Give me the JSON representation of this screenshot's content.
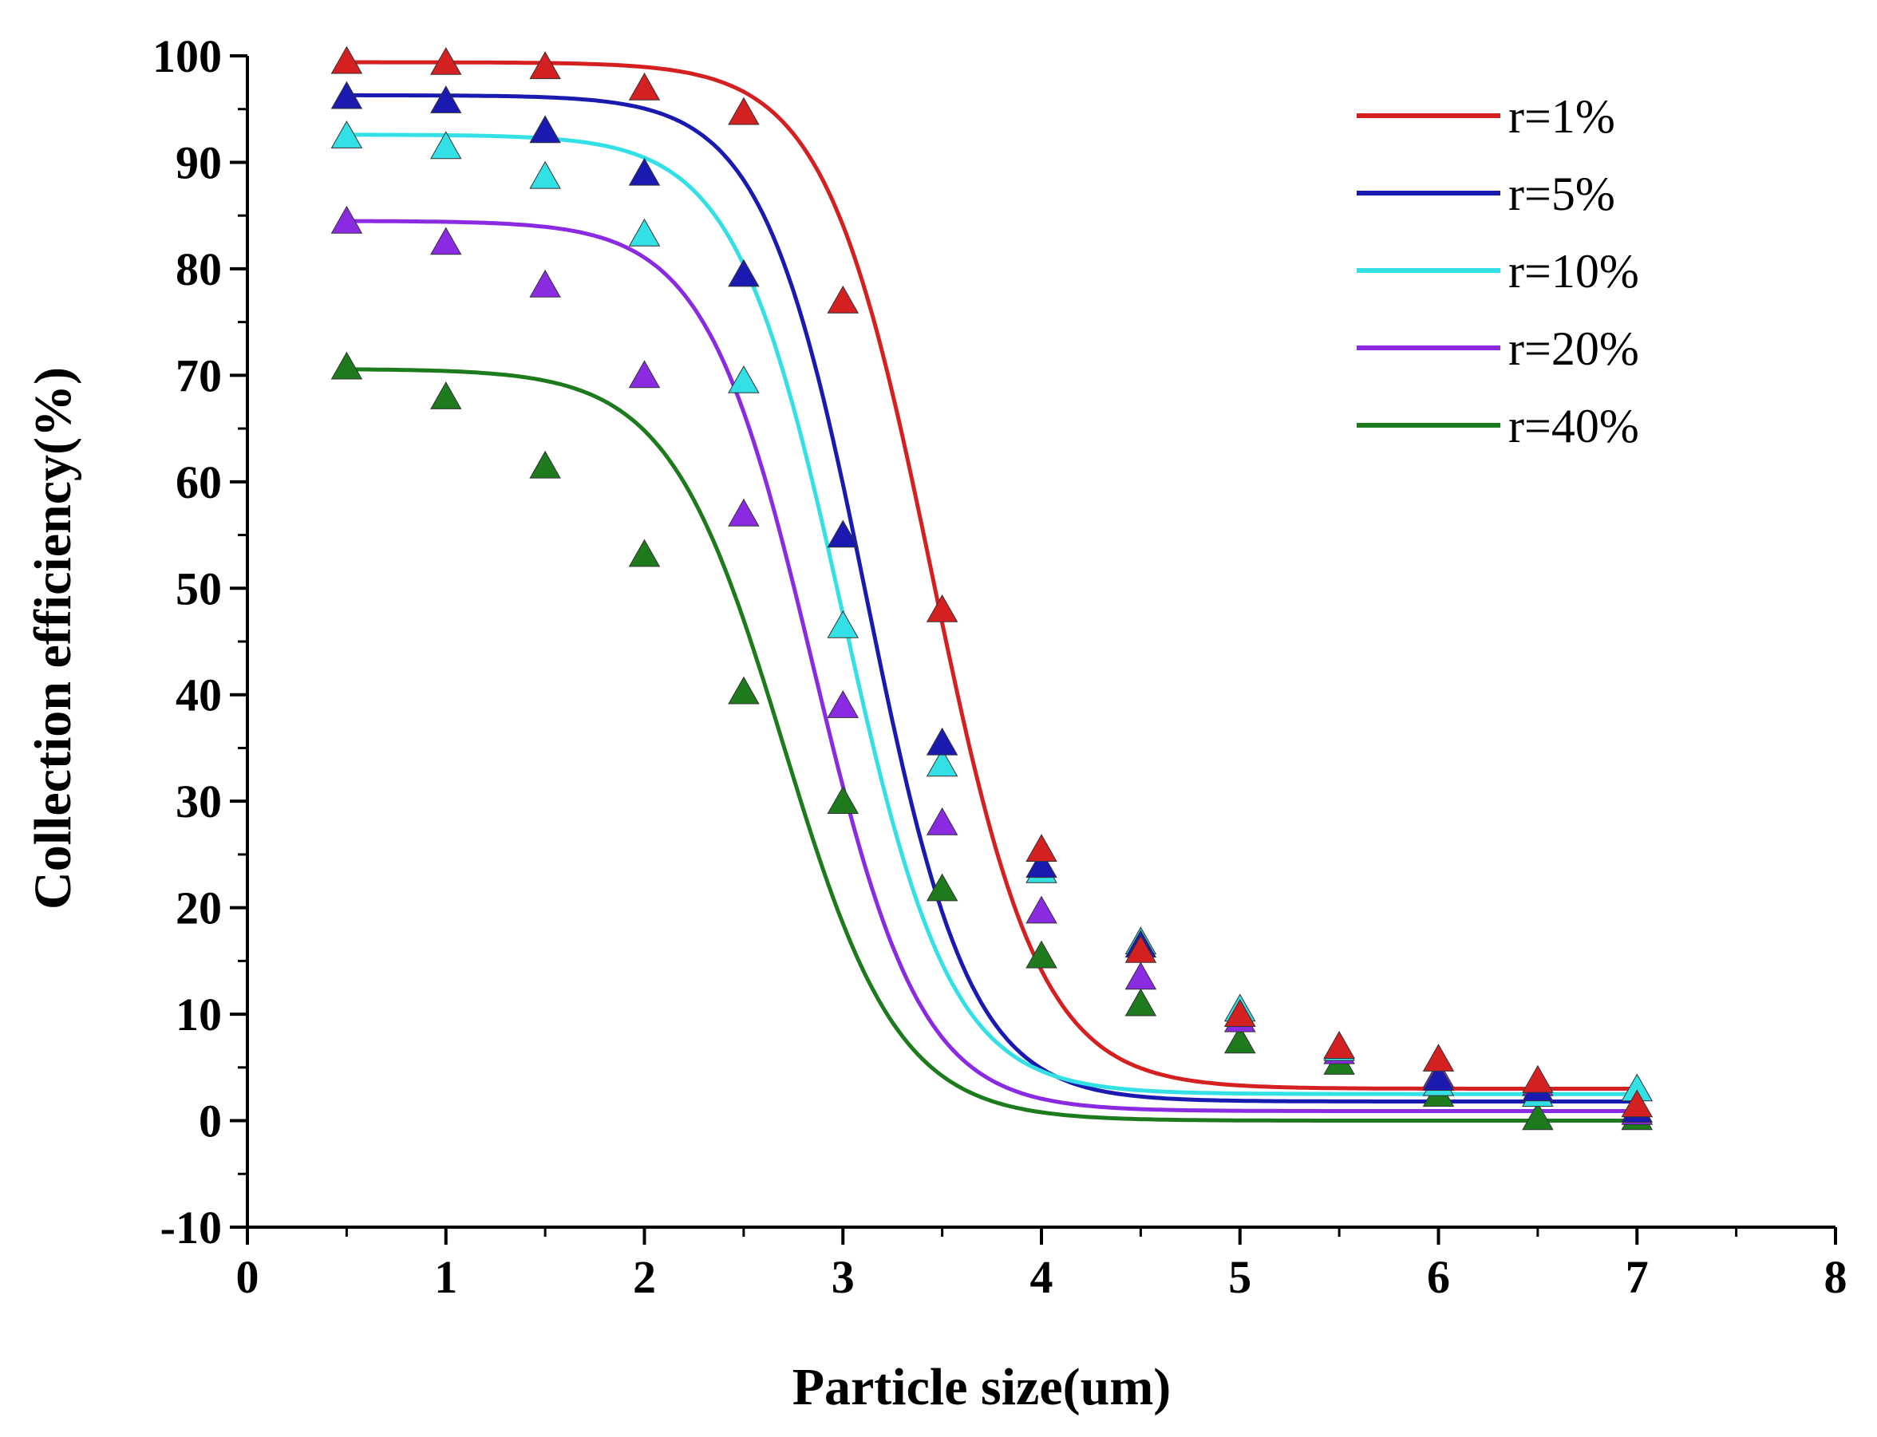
{
  "chart_data": {
    "type": "scatter",
    "title": "",
    "xlabel": "Particle size(um)",
    "ylabel": "Collection efficiency(%)",
    "xlim": [
      0,
      8
    ],
    "ylim": [
      -10,
      100
    ],
    "xticks": [
      0,
      1,
      2,
      3,
      4,
      5,
      6,
      7,
      8
    ],
    "yticks": [
      -10,
      0,
      10,
      20,
      30,
      40,
      50,
      60,
      70,
      80,
      90,
      100
    ],
    "legend_position": "top-right",
    "grid": false,
    "x": [
      0.5,
      1,
      1.5,
      2,
      2.5,
      3,
      3.5,
      4,
      4.5,
      5,
      5.5,
      6,
      6.5,
      7
    ],
    "series": [
      {
        "name": "r=1%",
        "color": "#d42020",
        "marker": "triangle",
        "values": [
          99.5,
          99.4,
          99,
          97,
          94.7,
          77,
          48,
          25.5,
          16,
          10,
          7,
          5.8,
          3.8,
          1.5
        ],
        "fit": {
          "model": "sigmoid",
          "top": 99.4,
          "bottom": 3.0,
          "x0": 3.45,
          "dx": 0.27
        }
      },
      {
        "name": "r=5%",
        "color": "#1a1ab0",
        "marker": "triangle",
        "values": [
          96.2,
          95.8,
          93,
          89,
          79.5,
          55,
          35.5,
          24,
          16.5,
          10,
          7,
          4,
          3,
          1
        ],
        "fit": {
          "model": "sigmoid",
          "top": 96.3,
          "bottom": 1.8,
          "x0": 3.12,
          "dx": 0.26
        }
      },
      {
        "name": "r=10%",
        "color": "#33e0e6",
        "marker": "triangle",
        "values": [
          92.5,
          91.5,
          88.7,
          83.3,
          69.5,
          46.5,
          33.5,
          23.5,
          16.8,
          10.5,
          6.8,
          3.5,
          2.5,
          3
        ],
        "fit": {
          "model": "sigmoid",
          "top": 92.6,
          "bottom": 2.5,
          "x0": 3.0,
          "dx": 0.27
        }
      },
      {
        "name": "r=20%",
        "color": "#8a2be2",
        "marker": "triangle",
        "values": [
          84.5,
          82.5,
          78.5,
          70,
          57,
          39,
          28,
          19.7,
          13.5,
          9.5,
          6.5,
          4.3,
          3.5,
          0.8
        ],
        "fit": {
          "model": "sigmoid",
          "top": 84.5,
          "bottom": 0.9,
          "x0": 2.85,
          "dx": 0.27
        }
      },
      {
        "name": "r=40%",
        "color": "#1d7a1d",
        "marker": "triangle",
        "values": [
          70.8,
          68,
          61.5,
          53.2,
          40.3,
          30,
          21.8,
          15.5,
          11,
          7.5,
          5.5,
          2.5,
          0.3,
          0.3
        ],
        "fit": {
          "model": "sigmoid",
          "top": 70.6,
          "bottom": 0.0,
          "x0": 2.7,
          "dx": 0.29
        }
      }
    ]
  }
}
